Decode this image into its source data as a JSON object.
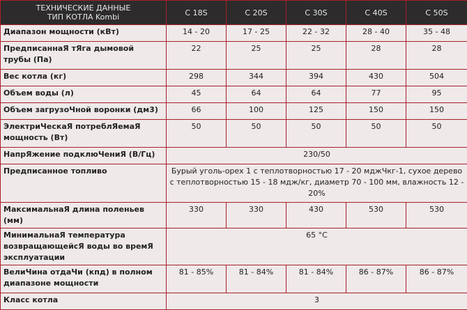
{
  "header": {
    "title_line1": "ТЕХНИЧЕСКИЕ ДАННЫЕ",
    "title_line2": "ТИП КОТЛА Kombi",
    "models": [
      "C 18S",
      "C 20S",
      "C 30S",
      "C 40S",
      "C 50S"
    ]
  },
  "rows": [
    {
      "label": "Диапазон мощности (кВт)",
      "values": [
        "14 - 20",
        "17 - 25",
        "22 - 32",
        "28 - 40",
        "35 - 48"
      ]
    },
    {
      "label": "ПредписаннаЯ тЯга дымовой трубы (Па)",
      "values": [
        "22",
        "25",
        "25",
        "28",
        "28"
      ]
    },
    {
      "label": "Вес котла (кг)",
      "values": [
        "298",
        "344",
        "394",
        "430",
        "504"
      ]
    },
    {
      "label": "Объем воды (л)",
      "values": [
        "45",
        "64",
        "64",
        "77",
        "95"
      ]
    },
    {
      "label": "Объем загрузоЧной воронки (дм3)",
      "values": [
        "66",
        "100",
        "125",
        "150",
        "150"
      ]
    },
    {
      "label": "ЭлектриЧескаЯ потреблЯемаЯ мощность (Вт)",
      "values": [
        "50",
        "50",
        "50",
        "50",
        "50"
      ]
    },
    {
      "label": "НапрЯжение подклюЧениЯ (В/Гц)",
      "value": "230/50"
    },
    {
      "label": "Предписанное топливо",
      "value": "Бурый уголь-орех 1 с теплотворностью 17 - 20 мджЧкг-1, сухое дерево с теплотворностью 15 - 18 мдж/кг, диаметр 70 - 100 мм, влажность 12 - 20%"
    },
    {
      "label": "МаксимальнаЯ длина поленьев (мм)",
      "values": [
        "330",
        "330",
        "430",
        "530",
        "530"
      ]
    },
    {
      "label": "МинимальнаЯ температура возвращающейсЯ воды во времЯ эксплуатации",
      "value": "65 °C"
    },
    {
      "label": "ВелиЧина отдаЧи (кпд) в полном диапазоне мощности",
      "values": [
        "81 - 85%",
        "81 - 84%",
        "81 - 84%",
        "86 - 87%",
        "86 - 87%"
      ]
    },
    {
      "label": "Класс котла",
      "value": "3"
    }
  ],
  "colors": {
    "header_bg": "#2d2b2b",
    "border": "#a8202a",
    "cell_bg": "#efe9e9"
  }
}
